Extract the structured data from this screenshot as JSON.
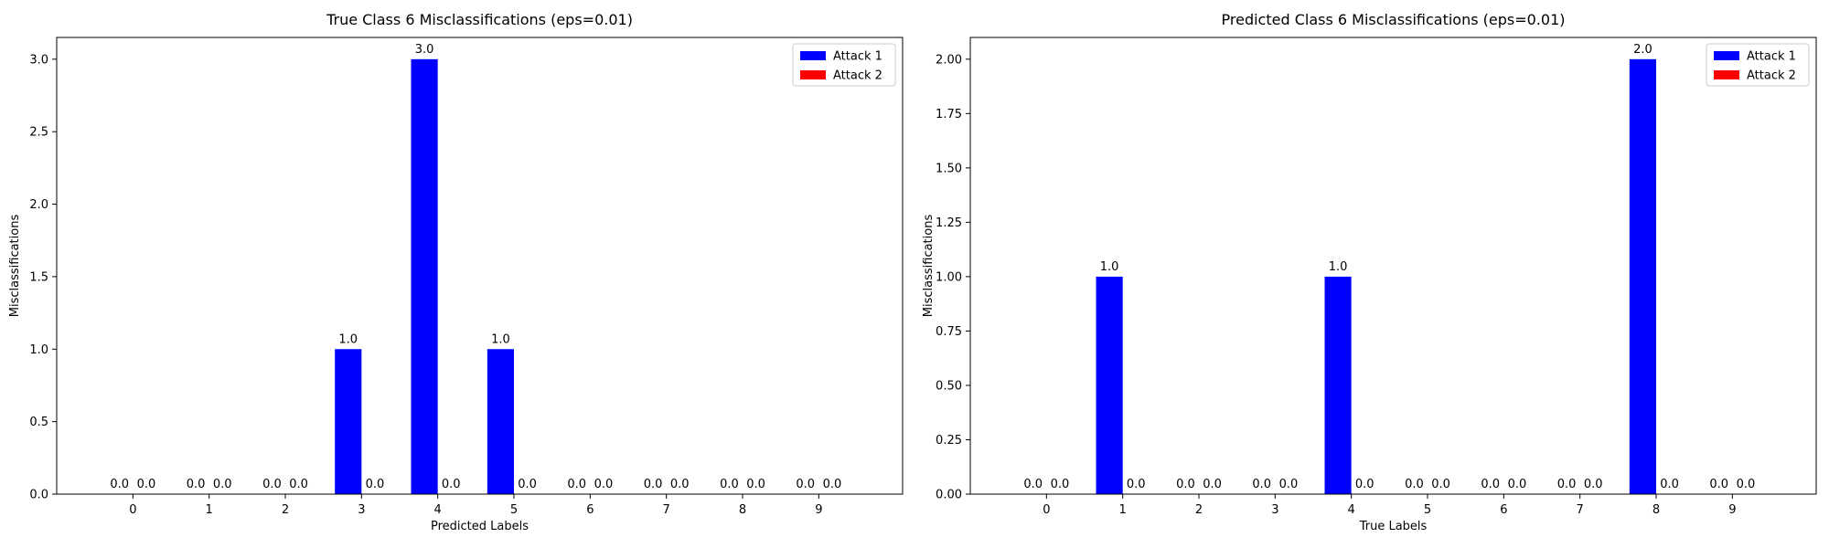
{
  "chart_data": [
    {
      "type": "bar",
      "title": "True Class 6 Misclassifications (eps=0.01)",
      "xlabel": "Predicted Labels",
      "ylabel": "Misclassifications",
      "categories": [
        "0",
        "1",
        "2",
        "3",
        "4",
        "5",
        "6",
        "7",
        "8",
        "9"
      ],
      "series": [
        {
          "name": "Attack 1",
          "color": "#0000ff",
          "values": [
            0,
            0,
            0,
            1,
            3,
            1,
            0,
            0,
            0,
            0
          ]
        },
        {
          "name": "Attack 2",
          "color": "#ff0000",
          "values": [
            0,
            0,
            0,
            0,
            0,
            0,
            0,
            0,
            0,
            0
          ]
        }
      ],
      "value_labels": [
        [
          "0.0",
          "0.0",
          "0.0",
          "1.0",
          "3.0",
          "1.0",
          "0.0",
          "0.0",
          "0.0",
          "0.0"
        ],
        [
          "0.0",
          "0.0",
          "0.0",
          "0.0",
          "0.0",
          "0.0",
          "0.0",
          "0.0",
          "0.0",
          "0.0"
        ]
      ],
      "ylim": [
        0,
        3.15
      ],
      "yticks": [
        0,
        0.5,
        1,
        1.5,
        2,
        2.5,
        3
      ],
      "ytick_labels": [
        "0.0",
        "0.5",
        "1.0",
        "1.5",
        "2.0",
        "2.5",
        "3.0"
      ],
      "legend_position": "upper right",
      "grid": false
    },
    {
      "type": "bar",
      "title": "Predicted Class 6 Misclassifications (eps=0.01)",
      "xlabel": "True Labels",
      "ylabel": "Misclassifications",
      "categories": [
        "0",
        "1",
        "2",
        "3",
        "4",
        "5",
        "6",
        "7",
        "8",
        "9"
      ],
      "series": [
        {
          "name": "Attack 1",
          "color": "#0000ff",
          "values": [
            0,
            1,
            0,
            0,
            1,
            0,
            0,
            0,
            2,
            0
          ]
        },
        {
          "name": "Attack 2",
          "color": "#ff0000",
          "values": [
            0,
            0,
            0,
            0,
            0,
            0,
            0,
            0,
            0,
            0
          ]
        }
      ],
      "value_labels": [
        [
          "0.0",
          "1.0",
          "0.0",
          "0.0",
          "1.0",
          "0.0",
          "0.0",
          "0.0",
          "2.0",
          "0.0"
        ],
        [
          "0.0",
          "0.0",
          "0.0",
          "0.0",
          "0.0",
          "0.0",
          "0.0",
          "0.0",
          "0.0",
          "0.0"
        ]
      ],
      "ylim": [
        0,
        2.1
      ],
      "yticks": [
        0,
        0.25,
        0.5,
        0.75,
        1,
        1.25,
        1.5,
        1.75,
        2
      ],
      "ytick_labels": [
        "0.00",
        "0.25",
        "0.50",
        "0.75",
        "1.00",
        "1.25",
        "1.50",
        "1.75",
        "2.00"
      ],
      "legend_position": "upper right",
      "grid": false
    }
  ]
}
